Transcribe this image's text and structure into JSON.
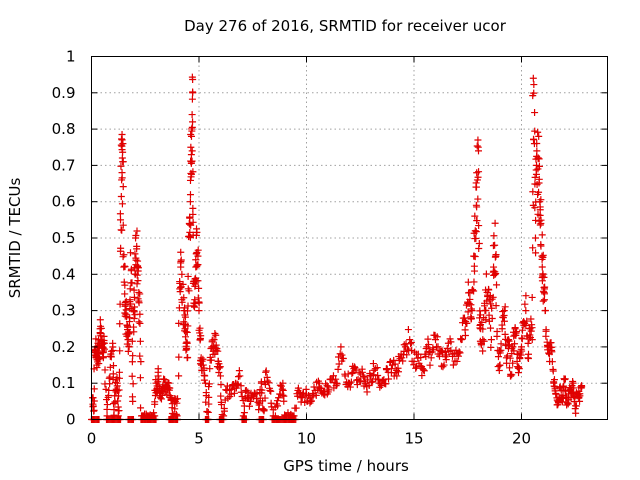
{
  "chart_data": {
    "type": "scatter",
    "title": "Day 276 of 2016, SRMTID for receiver ucor",
    "xlabel": "GPS time / hours",
    "ylabel": "SRMTID / TECUs",
    "xlim": [
      0,
      24
    ],
    "ylim": [
      0,
      1
    ],
    "xticks": [
      0,
      5,
      10,
      15,
      20
    ],
    "xtick_labels": [
      "0",
      "5",
      "10",
      "15",
      "20"
    ],
    "yticks": [
      0,
      0.1,
      0.2,
      0.3,
      0.4,
      0.5,
      0.6,
      0.7,
      0.8,
      0.9,
      1
    ],
    "ytick_labels": [
      "0",
      "0.1",
      "0.2",
      "0.3",
      "0.4",
      "0.5",
      "0.6",
      "0.7",
      "0.8",
      "0.9",
      "1"
    ],
    "grid": true,
    "marker": "+",
    "marker_color": "#e00000",
    "series": [
      {
        "name": "SRMTID",
        "points": [
          [
            0.05,
            0.06
          ],
          [
            0.1,
            0.0
          ],
          [
            0.15,
            0.19
          ],
          [
            0.2,
            0.2
          ],
          [
            0.25,
            0.15
          ],
          [
            0.3,
            0.21
          ],
          [
            0.35,
            0.18
          ],
          [
            0.4,
            0.25
          ],
          [
            0.45,
            0.22
          ],
          [
            0.5,
            0.2
          ],
          [
            0.55,
            0.17
          ],
          [
            0.6,
            0.21
          ],
          [
            0.7,
            0.0
          ],
          [
            0.8,
            0.08
          ],
          [
            0.9,
            0.18
          ],
          [
            1.0,
            0.19
          ],
          [
            1.05,
            0.0
          ],
          [
            1.1,
            0.08
          ],
          [
            1.2,
            0.1
          ],
          [
            1.25,
            0.0
          ],
          [
            1.3,
            0.13
          ],
          [
            1.35,
            0.55
          ],
          [
            1.4,
            0.66
          ],
          [
            1.42,
            0.68
          ],
          [
            1.45,
            0.71
          ],
          [
            1.5,
            0.42
          ],
          [
            1.55,
            0.37
          ],
          [
            1.6,
            0.29
          ],
          [
            1.65,
            0.26
          ],
          [
            1.7,
            0.22
          ],
          [
            1.75,
            0.2
          ],
          [
            1.8,
            0.36
          ],
          [
            1.85,
            0.41
          ],
          [
            1.9,
            0.0
          ],
          [
            1.95,
            0.3
          ],
          [
            2.0,
            0.31
          ],
          [
            2.05,
            0.5
          ],
          [
            2.1,
            0.47
          ],
          [
            2.15,
            0.42
          ],
          [
            2.2,
            0.35
          ],
          [
            2.25,
            0.29
          ],
          [
            2.3,
            0.0
          ],
          [
            2.5,
            0.0
          ],
          [
            2.7,
            0.0
          ],
          [
            2.9,
            0.0
          ],
          [
            3.0,
            0.1
          ],
          [
            3.05,
            0.08
          ],
          [
            3.1,
            0.13
          ],
          [
            3.2,
            0.06
          ],
          [
            3.3,
            0.09
          ],
          [
            3.4,
            0.11
          ],
          [
            3.5,
            0.07
          ],
          [
            3.6,
            0.1
          ],
          [
            3.7,
            0.06
          ],
          [
            3.8,
            0.0
          ],
          [
            3.9,
            0.05
          ],
          [
            4.0,
            0.0
          ],
          [
            4.1,
            0.38
          ],
          [
            4.15,
            0.42
          ],
          [
            4.2,
            0.33
          ],
          [
            4.3,
            0.3
          ],
          [
            4.35,
            0.25
          ],
          [
            4.4,
            0.21
          ],
          [
            4.45,
            0.17
          ],
          [
            4.5,
            0.36
          ],
          [
            4.55,
            0.54
          ],
          [
            4.6,
            0.6
          ],
          [
            4.62,
            0.75
          ],
          [
            4.65,
            0.78
          ],
          [
            4.68,
            0.84
          ],
          [
            4.7,
            0.82
          ],
          [
            4.75,
            0.38
          ],
          [
            4.8,
            0.33
          ],
          [
            4.85,
            0.42
          ],
          [
            4.9,
            0.46
          ],
          [
            4.95,
            0.45
          ],
          [
            5.0,
            0.3
          ],
          [
            5.05,
            0.22
          ],
          [
            5.1,
            0.17
          ],
          [
            5.2,
            0.15
          ],
          [
            5.3,
            0.1
          ],
          [
            5.4,
            0.0
          ],
          [
            5.5,
            0.14
          ],
          [
            5.6,
            0.2
          ],
          [
            5.7,
            0.22
          ],
          [
            5.8,
            0.19
          ],
          [
            5.9,
            0.16
          ],
          [
            6.0,
            0.12
          ],
          [
            6.1,
            0.0
          ],
          [
            6.3,
            0.08
          ],
          [
            6.5,
            0.07
          ],
          [
            6.7,
            0.1
          ],
          [
            6.9,
            0.12
          ],
          [
            7.1,
            0.0
          ],
          [
            7.2,
            0.08
          ],
          [
            7.4,
            0.05
          ],
          [
            7.6,
            0.07
          ],
          [
            7.8,
            0.04
          ],
          [
            7.9,
            0.1
          ],
          [
            8.0,
            0.0
          ],
          [
            8.1,
            0.13
          ],
          [
            8.3,
            0.08
          ],
          [
            8.5,
            0.0
          ],
          [
            8.7,
            0.06
          ],
          [
            8.9,
            0.1
          ],
          [
            9.0,
            0.0
          ],
          [
            9.2,
            0.0
          ],
          [
            9.4,
            0.0
          ],
          [
            9.6,
            0.08
          ],
          [
            9.8,
            0.06
          ],
          [
            10.0,
            0.07
          ],
          [
            10.2,
            0.05
          ],
          [
            10.4,
            0.08
          ],
          [
            10.6,
            0.1
          ],
          [
            10.8,
            0.07
          ],
          [
            11.0,
            0.09
          ],
          [
            11.2,
            0.11
          ],
          [
            11.4,
            0.1
          ],
          [
            11.6,
            0.2
          ],
          [
            11.8,
            0.12
          ],
          [
            12.0,
            0.1
          ],
          [
            12.2,
            0.14
          ],
          [
            12.4,
            0.11
          ],
          [
            12.6,
            0.13
          ],
          [
            12.8,
            0.09
          ],
          [
            13.0,
            0.12
          ],
          [
            13.2,
            0.14
          ],
          [
            13.4,
            0.1
          ],
          [
            13.6,
            0.11
          ],
          [
            13.8,
            0.13
          ],
          [
            14.0,
            0.15
          ],
          [
            14.2,
            0.12
          ],
          [
            14.4,
            0.18
          ],
          [
            14.6,
            0.2
          ],
          [
            14.8,
            0.22
          ],
          [
            15.0,
            0.16
          ],
          [
            15.2,
            0.18
          ],
          [
            15.4,
            0.14
          ],
          [
            15.6,
            0.2
          ],
          [
            15.8,
            0.17
          ],
          [
            16.0,
            0.22
          ],
          [
            16.2,
            0.19
          ],
          [
            16.4,
            0.15
          ],
          [
            16.6,
            0.21
          ],
          [
            16.8,
            0.18
          ],
          [
            17.0,
            0.16
          ],
          [
            17.2,
            0.22
          ],
          [
            17.4,
            0.27
          ],
          [
            17.5,
            0.32
          ],
          [
            17.6,
            0.35
          ],
          [
            17.7,
            0.3
          ],
          [
            17.8,
            0.45
          ],
          [
            17.85,
            0.52
          ],
          [
            17.9,
            0.59
          ],
          [
            17.95,
            0.66
          ],
          [
            18.0,
            0.74
          ],
          [
            18.05,
            0.28
          ],
          [
            18.1,
            0.25
          ],
          [
            18.2,
            0.22
          ],
          [
            18.3,
            0.3
          ],
          [
            18.4,
            0.35
          ],
          [
            18.5,
            0.33
          ],
          [
            18.6,
            0.22
          ],
          [
            18.7,
            0.42
          ],
          [
            18.75,
            0.48
          ],
          [
            18.8,
            0.45
          ],
          [
            18.9,
            0.19
          ],
          [
            19.0,
            0.15
          ],
          [
            19.1,
            0.25
          ],
          [
            19.2,
            0.3
          ],
          [
            19.3,
            0.17
          ],
          [
            19.4,
            0.22
          ],
          [
            19.5,
            0.12
          ],
          [
            19.6,
            0.2
          ],
          [
            19.7,
            0.25
          ],
          [
            19.8,
            0.18
          ],
          [
            19.9,
            0.14
          ],
          [
            20.0,
            0.2
          ],
          [
            20.1,
            0.27
          ],
          [
            20.2,
            0.3
          ],
          [
            20.3,
            0.17
          ],
          [
            20.4,
            0.25
          ],
          [
            20.5,
            0.22
          ],
          [
            20.55,
            0.94
          ],
          [
            20.6,
            0.76
          ],
          [
            20.65,
            0.5
          ],
          [
            20.7,
            0.7
          ],
          [
            20.75,
            0.62
          ],
          [
            20.8,
            0.78
          ],
          [
            20.85,
            0.6
          ],
          [
            20.9,
            0.54
          ],
          [
            20.95,
            0.45
          ],
          [
            21.0,
            0.4
          ],
          [
            21.05,
            0.35
          ],
          [
            21.1,
            0.3
          ],
          [
            21.2,
            0.2
          ],
          [
            21.3,
            0.18
          ],
          [
            21.4,
            0.19
          ],
          [
            21.5,
            0.1
          ],
          [
            21.6,
            0.07
          ],
          [
            21.7,
            0.05
          ],
          [
            21.8,
            0.09
          ],
          [
            21.9,
            0.06
          ],
          [
            22.0,
            0.11
          ],
          [
            22.1,
            0.04
          ],
          [
            22.2,
            0.08
          ],
          [
            22.3,
            0.06
          ],
          [
            22.4,
            0.1
          ],
          [
            22.5,
            0.03
          ],
          [
            22.6,
            0.07
          ],
          [
            22.7,
            0.05
          ],
          [
            22.8,
            0.09
          ]
        ]
      }
    ],
    "zero_runs": [
      [
        0.0,
        0.35
      ],
      [
        0.7,
        1.35
      ],
      [
        1.7,
        1.95
      ],
      [
        2.35,
        3.0
      ],
      [
        3.6,
        4.0
      ],
      [
        5.3,
        5.45
      ],
      [
        5.95,
        6.15
      ],
      [
        7.0,
        7.2
      ],
      [
        7.8,
        8.0
      ],
      [
        8.4,
        9.5
      ]
    ]
  }
}
